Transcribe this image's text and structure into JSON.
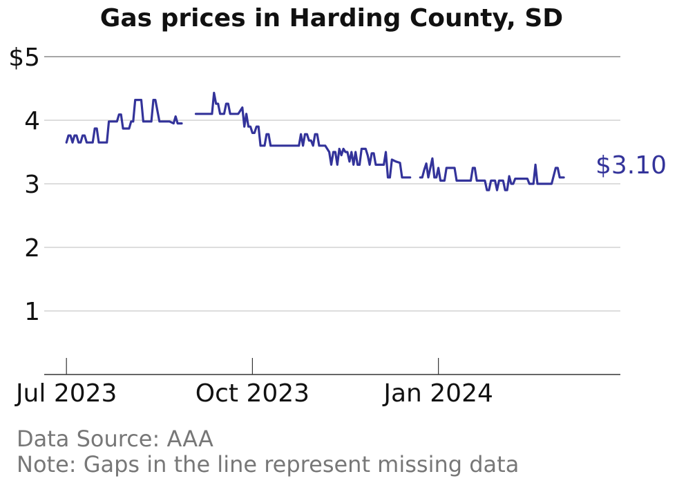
{
  "chart_data": {
    "type": "line",
    "title": "Gas prices in Harding County, SD",
    "y_tick_labels": [
      "1",
      "2",
      "3",
      "4",
      "$5"
    ],
    "y_ticks": [
      1,
      2,
      3,
      4,
      5
    ],
    "ylim": [
      0,
      5
    ],
    "x_ticks": [
      {
        "label": "Jul 2023",
        "date": "2023-07-01"
      },
      {
        "label": "Oct 2023",
        "date": "2023-10-01"
      },
      {
        "label": "Jan 2024",
        "date": "2024-01-01"
      }
    ],
    "xlim": [
      "2023-06-20",
      "2024-03-31"
    ],
    "grid": true,
    "end_label": "$3.10",
    "line_color": "#33339a",
    "series": [
      {
        "segments": [
          [
            [
              "2023-07-01",
              3.65
            ],
            [
              "2023-07-02",
              3.76
            ],
            [
              "2023-07-03",
              3.76
            ],
            [
              "2023-07-04",
              3.65
            ],
            [
              "2023-07-05",
              3.76
            ],
            [
              "2023-07-06",
              3.76
            ],
            [
              "2023-07-07",
              3.65
            ],
            [
              "2023-07-08",
              3.65
            ],
            [
              "2023-07-09",
              3.76
            ],
            [
              "2023-07-10",
              3.76
            ],
            [
              "2023-07-11",
              3.65
            ],
            [
              "2023-07-14",
              3.65
            ],
            [
              "2023-07-15",
              3.87
            ],
            [
              "2023-07-16",
              3.87
            ],
            [
              "2023-07-17",
              3.65
            ],
            [
              "2023-07-21",
              3.65
            ],
            [
              "2023-07-22",
              3.98
            ],
            [
              "2023-07-26",
              3.98
            ],
            [
              "2023-07-27",
              4.09
            ],
            [
              "2023-07-28",
              4.09
            ],
            [
              "2023-07-29",
              3.87
            ],
            [
              "2023-08-01",
              3.87
            ],
            [
              "2023-08-02",
              3.98
            ],
            [
              "2023-08-03",
              3.98
            ],
            [
              "2023-08-04",
              4.32
            ],
            [
              "2023-08-07",
              4.32
            ],
            [
              "2023-08-08",
              3.98
            ],
            [
              "2023-08-12",
              3.98
            ],
            [
              "2023-08-13",
              4.32
            ],
            [
              "2023-08-14",
              4.32
            ],
            [
              "2023-08-16",
              3.98
            ],
            [
              "2023-08-21",
              3.98
            ],
            [
              "2023-08-23",
              3.95
            ],
            [
              "2023-08-24",
              4.06
            ],
            [
              "2023-08-25",
              3.95
            ],
            [
              "2023-08-27",
              3.95
            ]
          ],
          [
            [
              "2023-09-03",
              4.1
            ],
            [
              "2023-09-11",
              4.1
            ],
            [
              "2023-09-12",
              4.43
            ],
            [
              "2023-09-13",
              4.26
            ],
            [
              "2023-09-14",
              4.26
            ],
            [
              "2023-09-15",
              4.1
            ],
            [
              "2023-09-17",
              4.1
            ],
            [
              "2023-09-18",
              4.26
            ],
            [
              "2023-09-19",
              4.26
            ],
            [
              "2023-09-20",
              4.1
            ],
            [
              "2023-09-24",
              4.1
            ],
            [
              "2023-09-26",
              4.2
            ],
            [
              "2023-09-27",
              3.9
            ],
            [
              "2023-09-28",
              4.1
            ],
            [
              "2023-09-29",
              3.9
            ],
            [
              "2023-09-30",
              3.9
            ],
            [
              "2023-10-01",
              3.8
            ],
            [
              "2023-10-02",
              3.8
            ],
            [
              "2023-10-03",
              3.9
            ],
            [
              "2023-10-04",
              3.9
            ],
            [
              "2023-10-05",
              3.6
            ],
            [
              "2023-10-07",
              3.6
            ],
            [
              "2023-10-08",
              3.78
            ],
            [
              "2023-10-09",
              3.78
            ],
            [
              "2023-10-10",
              3.6
            ],
            [
              "2023-10-24",
              3.6
            ],
            [
              "2023-10-25",
              3.78
            ],
            [
              "2023-10-26",
              3.6
            ],
            [
              "2023-10-27",
              3.78
            ],
            [
              "2023-10-28",
              3.78
            ],
            [
              "2023-10-29",
              3.68
            ],
            [
              "2023-10-30",
              3.68
            ],
            [
              "2023-10-31",
              3.6
            ],
            [
              "2023-11-01",
              3.78
            ],
            [
              "2023-11-02",
              3.78
            ],
            [
              "2023-11-03",
              3.6
            ],
            [
              "2023-11-06",
              3.6
            ],
            [
              "2023-11-08",
              3.5
            ],
            [
              "2023-11-09",
              3.3
            ],
            [
              "2023-11-10",
              3.5
            ],
            [
              "2023-11-11",
              3.5
            ],
            [
              "2023-11-12",
              3.3
            ],
            [
              "2023-11-13",
              3.55
            ],
            [
              "2023-11-14",
              3.45
            ],
            [
              "2023-11-15",
              3.55
            ],
            [
              "2023-11-16",
              3.5
            ],
            [
              "2023-11-17",
              3.5
            ],
            [
              "2023-11-18",
              3.35
            ],
            [
              "2023-11-19",
              3.5
            ],
            [
              "2023-11-20",
              3.3
            ],
            [
              "2023-11-21",
              3.5
            ],
            [
              "2023-11-22",
              3.3
            ],
            [
              "2023-11-23",
              3.3
            ],
            [
              "2023-11-24",
              3.55
            ],
            [
              "2023-11-26",
              3.55
            ],
            [
              "2023-11-27",
              3.45
            ],
            [
              "2023-11-28",
              3.3
            ],
            [
              "2023-11-29",
              3.48
            ],
            [
              "2023-11-30",
              3.48
            ],
            [
              "2023-12-01",
              3.3
            ],
            [
              "2023-12-05",
              3.3
            ],
            [
              "2023-12-06",
              3.5
            ],
            [
              "2023-12-07",
              3.1
            ],
            [
              "2023-12-08",
              3.1
            ],
            [
              "2023-12-09",
              3.38
            ],
            [
              "2023-12-11",
              3.35
            ],
            [
              "2023-12-13",
              3.33
            ],
            [
              "2023-12-14",
              3.1
            ],
            [
              "2023-12-18",
              3.1
            ]
          ],
          [
            [
              "2023-12-23",
              3.1
            ],
            [
              "2023-12-24",
              3.1
            ],
            [
              "2023-12-25",
              3.22
            ],
            [
              "2023-12-26",
              3.32
            ],
            [
              "2023-12-27",
              3.1
            ],
            [
              "2023-12-29",
              3.4
            ],
            [
              "2023-12-30",
              3.1
            ],
            [
              "2023-12-31",
              3.1
            ],
            [
              "2024-01-01",
              3.25
            ],
            [
              "2024-01-02",
              3.05
            ],
            [
              "2024-01-04",
              3.05
            ],
            [
              "2024-01-05",
              3.25
            ],
            [
              "2024-01-09",
              3.25
            ],
            [
              "2024-01-10",
              3.05
            ],
            [
              "2024-01-17",
              3.05
            ],
            [
              "2024-01-18",
              3.25
            ],
            [
              "2024-01-19",
              3.25
            ],
            [
              "2024-01-20",
              3.05
            ],
            [
              "2024-01-24",
              3.05
            ],
            [
              "2024-01-25",
              2.9
            ],
            [
              "2024-01-26",
              2.9
            ],
            [
              "2024-01-27",
              3.05
            ],
            [
              "2024-01-29",
              3.05
            ],
            [
              "2024-01-30",
              2.9
            ],
            [
              "2024-01-31",
              3.05
            ],
            [
              "2024-02-02",
              3.05
            ],
            [
              "2024-02-03",
              2.9
            ],
            [
              "2024-02-04",
              2.9
            ],
            [
              "2024-02-05",
              3.12
            ],
            [
              "2024-02-06",
              3.0
            ],
            [
              "2024-02-07",
              3.0
            ],
            [
              "2024-02-08",
              3.08
            ],
            [
              "2024-02-14",
              3.08
            ],
            [
              "2024-02-15",
              3.0
            ],
            [
              "2024-02-17",
              3.0
            ],
            [
              "2024-02-18",
              3.3
            ],
            [
              "2024-02-19",
              3.0
            ],
            [
              "2024-02-26",
              3.0
            ],
            [
              "2024-02-28",
              3.25
            ],
            [
              "2024-02-29",
              3.25
            ],
            [
              "2024-03-01",
              3.1
            ],
            [
              "2024-03-03",
              3.1
            ]
          ]
        ]
      }
    ]
  },
  "footer": {
    "source": "Data Source: AAA",
    "note": "Note: Gaps in the line represent missing data"
  }
}
